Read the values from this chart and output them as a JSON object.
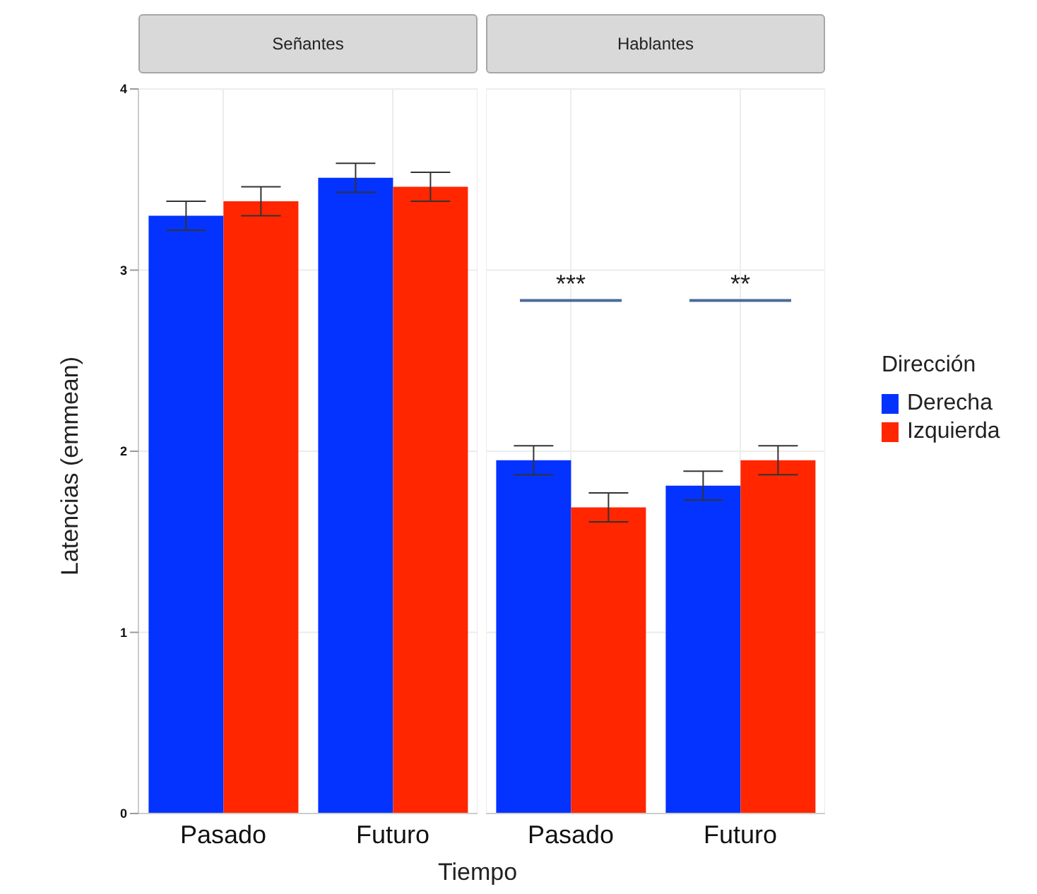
{
  "chart_data": [
    {
      "type": "bar",
      "title": "Señantes",
      "xlabel": "Tiempo",
      "ylabel": "Latencias (emmean)",
      "categories": [
        "Pasado",
        "Futuro"
      ],
      "series": [
        {
          "name": "Derecha",
          "color": "#0433ff",
          "values": [
            3.3,
            3.51
          ],
          "errors": [
            0.08,
            0.08
          ]
        },
        {
          "name": "Izquierda",
          "color": "#ff2600",
          "values": [
            3.38,
            3.46
          ],
          "errors": [
            0.08,
            0.08
          ]
        }
      ],
      "ylim": [
        0,
        4
      ],
      "yticks": [
        0,
        1,
        2,
        3,
        4
      ],
      "grid": true,
      "legend": "right",
      "legend_title": "Dirección"
    },
    {
      "type": "bar",
      "title": "Hablantes",
      "categories": [
        "Pasado",
        "Futuro"
      ],
      "series": [
        {
          "color": "#0433ff",
          "values": [
            1.95,
            1.81
          ],
          "errors": [
            0.08,
            0.08
          ]
        },
        {
          "color": "#ff2600",
          "values": [
            1.69,
            1.95
          ],
          "errors": [
            0.08,
            0.08
          ]
        }
      ],
      "ylim": [
        0,
        4
      ],
      "yticks": [
        0,
        1,
        2,
        3,
        4
      ],
      "grid": true,
      "tick_labels": "x",
      "annotations": [
        "***",
        "**"
      ]
    }
  ]
}
